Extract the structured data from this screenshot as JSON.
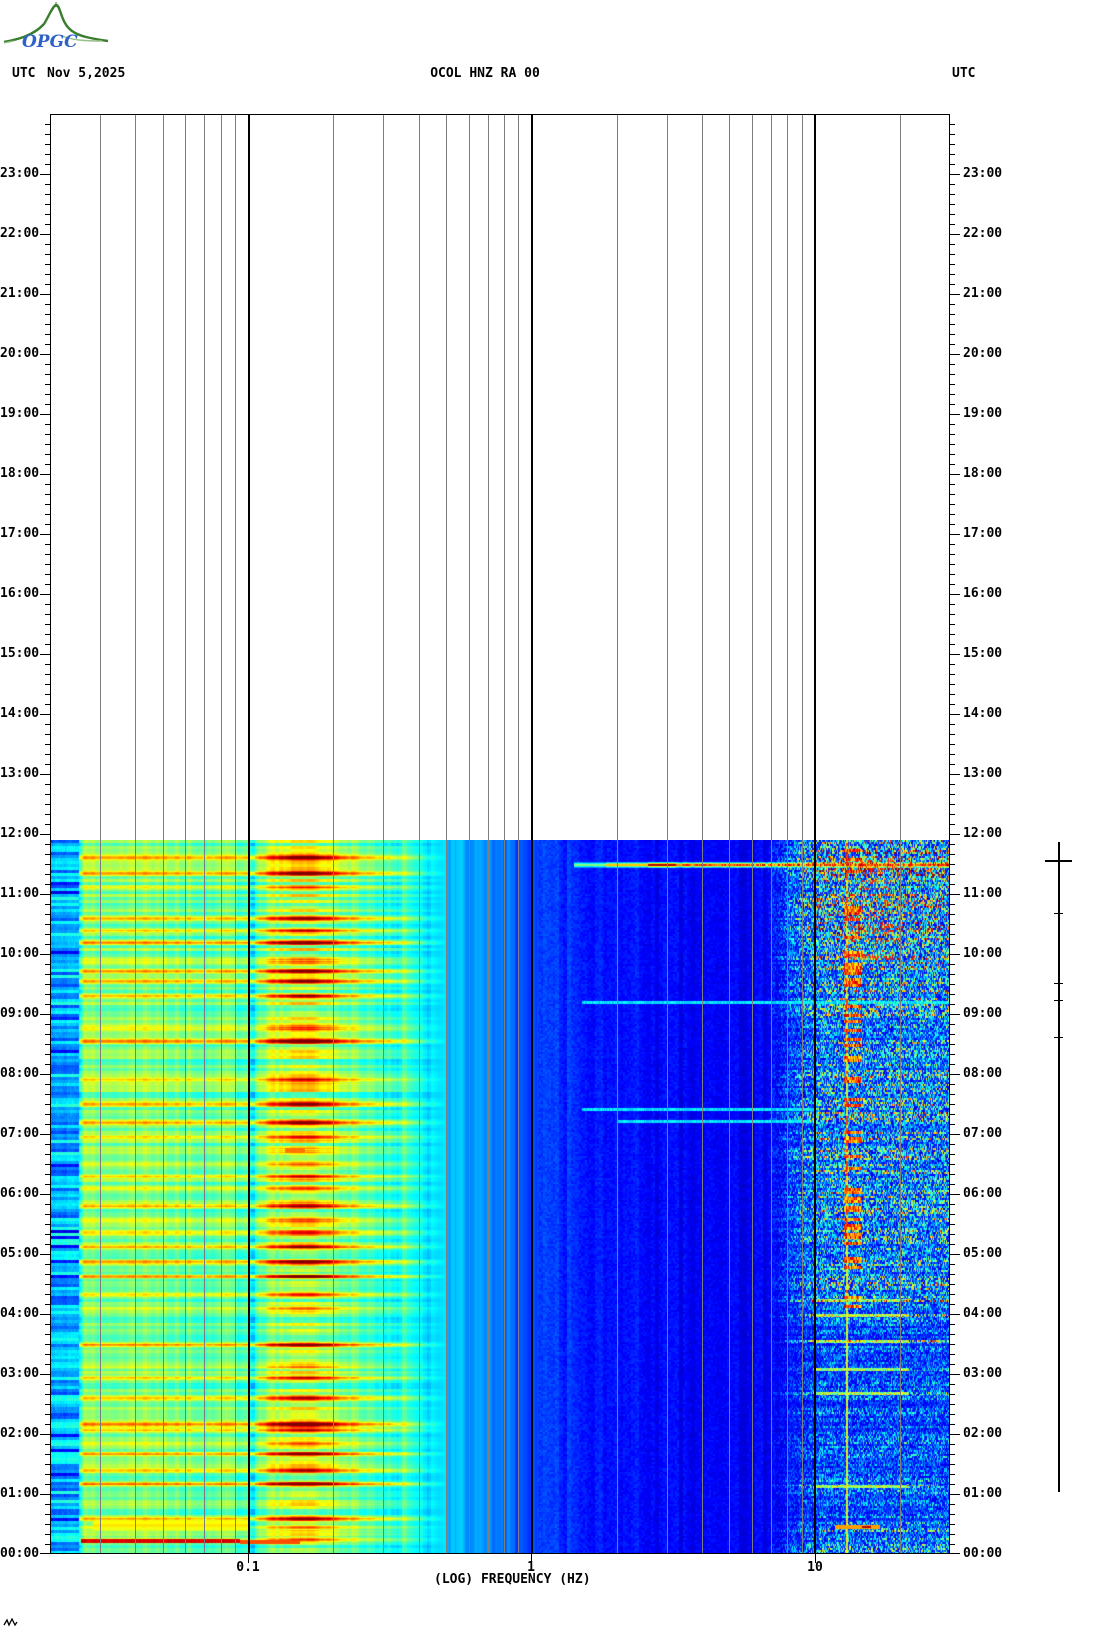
{
  "header": {
    "logo_text": "OPGC",
    "tz_left": "UTC",
    "date": "Nov 5,2025",
    "station": "OCOL HNZ RA 00",
    "tz_right": "UTC"
  },
  "colors": {
    "background": "#ffffff",
    "grid_minor": "#7d7d7d",
    "grid_decade": "#000000",
    "frame": "#000000",
    "logo_green_dark": "#3a7d2c",
    "logo_green_light": "#9cc08c",
    "logo_blue": "#2f62c8"
  },
  "chart_data": {
    "type": "heatmap",
    "title": "OCOL HNZ RA 00",
    "xlabel": "(LOG) FREQUENCY (HZ)",
    "x_scale": "log10",
    "x_range_hz": [
      0.02,
      30
    ],
    "x_decade_ticks": {
      "values": [
        0.1,
        1,
        10
      ],
      "labels": [
        "0.1",
        "1",
        "10"
      ]
    },
    "x_minor_gridlines_hz": [
      0.03,
      0.04,
      0.05,
      0.06,
      0.07,
      0.08,
      0.09,
      0.2,
      0.3,
      0.4,
      0.5,
      0.6,
      0.7,
      0.8,
      0.9,
      2,
      3,
      4,
      5,
      6,
      7,
      8,
      9,
      20
    ],
    "y_axis": {
      "unit": "UTC",
      "range_hours": [
        0,
        24
      ],
      "major_tick_minutes": 60,
      "minor_tick_minutes": 10,
      "hour_labels": [
        "00:00",
        "01:00",
        "02:00",
        "03:00",
        "04:00",
        "05:00",
        "06:00",
        "07:00",
        "08:00",
        "09:00",
        "10:00",
        "11:00",
        "12:00",
        "13:00",
        "14:00",
        "15:00",
        "16:00",
        "17:00",
        "18:00",
        "19:00",
        "20:00",
        "21:00",
        "22:00",
        "23:00"
      ]
    },
    "data_extent_hours": [
      0,
      11.9
    ],
    "colormap": "jet",
    "frequency_profile": [
      {
        "log10_f": -1.7,
        "level": 0.3
      },
      {
        "log10_f": -1.61,
        "level": 0.3
      },
      {
        "log10_f": -1.58,
        "level": 0.5
      },
      {
        "log10_f": -1.3,
        "level": 0.5
      },
      {
        "log10_f": -1.12,
        "level": 0.46
      },
      {
        "log10_f": -0.98,
        "level": 0.42
      },
      {
        "log10_f": -0.92,
        "level": 0.54
      },
      {
        "log10_f": -0.8,
        "level": 0.57
      },
      {
        "log10_f": -0.7,
        "level": 0.53
      },
      {
        "log10_f": -0.6,
        "level": 0.46
      },
      {
        "log10_f": -0.48,
        "level": 0.41
      },
      {
        "log10_f": -0.3,
        "level": 0.32
      },
      {
        "log10_f": -0.15,
        "level": 0.25
      },
      {
        "log10_f": 0.0,
        "level": 0.19
      },
      {
        "log10_f": 0.3,
        "level": 0.135
      },
      {
        "log10_f": 0.6,
        "level": 0.115
      },
      {
        "log10_f": 0.9,
        "level": 0.105
      },
      {
        "log10_f": 1.48,
        "level": 0.1
      }
    ],
    "bright_row_hours": [
      0.25,
      0.45,
      0.6,
      1.17,
      1.4,
      1.67,
      1.85,
      2.07,
      2.17,
      2.6,
      2.95,
      3.12,
      3.5,
      4.1,
      4.33,
      4.63,
      4.88,
      5.12,
      5.37,
      5.58,
      5.82,
      6.1,
      6.3,
      6.52,
      6.73,
      6.95,
      7.2,
      7.5,
      7.9,
      8.55,
      8.78,
      9.3,
      9.55,
      9.72,
      9.88,
      10.2,
      10.4,
      10.6,
      11.1,
      11.35,
      11.62
    ],
    "hf_speckle_periods": [
      {
        "from": 0.0,
        "to": 0.55,
        "level": 0.45
      },
      {
        "from": 0.55,
        "to": 1.0,
        "level": 0.26
      },
      {
        "from": 1.0,
        "to": 2.4,
        "level": 0.3
      },
      {
        "from": 2.4,
        "to": 4.1,
        "level": 0.26
      },
      {
        "from": 4.1,
        "to": 6.5,
        "level": 0.52
      },
      {
        "from": 6.5,
        "to": 8.0,
        "level": 0.55
      },
      {
        "from": 8.0,
        "to": 9.3,
        "level": 0.5
      },
      {
        "from": 9.3,
        "to": 10.4,
        "level": 0.62
      },
      {
        "from": 10.4,
        "to": 11.9,
        "level": 0.74
      }
    ],
    "hf_dash_hours": [
      1.13,
      2.68,
      3.08,
      3.55,
      3.98,
      4.23
    ],
    "tonal_line_hz": 12.9,
    "orange_spots": [
      {
        "hour": 6.73,
        "f_hz": 0.146
      },
      {
        "hour": 10.2,
        "f_hz": 0.19
      }
    ],
    "faint_broadband_lines": [
      {
        "hour": 9.2,
        "f_lo": 1.5,
        "f_hi": 30
      },
      {
        "hour": 7.42,
        "f_lo": 1.5,
        "f_hi": 10
      },
      {
        "hour": 7.22,
        "f_lo": 2.0,
        "f_hi": 10
      }
    ],
    "events": [
      {
        "hour": 11.5,
        "f_lo": 1.4,
        "f_hi": 30,
        "kind": "broadband-event-line"
      },
      {
        "hour": 0.22,
        "f_lo": 0.026,
        "f_hi": 0.15,
        "kind": "low-frequency-red-line"
      },
      {
        "hour": 0.42,
        "f_lo": 0.028,
        "f_hi": 0.1,
        "kind": "low-frequency-yellow-band"
      },
      {
        "hour": 0.44,
        "f_lo": 12,
        "f_hi": 17,
        "kind": "high-frequency-burst"
      }
    ],
    "detection_marker": {
      "span_hours": [
        1.03,
        11.87
      ],
      "crossbar_hour": 11.57,
      "tick_hours": [
        10.68,
        9.52,
        9.23,
        8.62
      ]
    }
  }
}
